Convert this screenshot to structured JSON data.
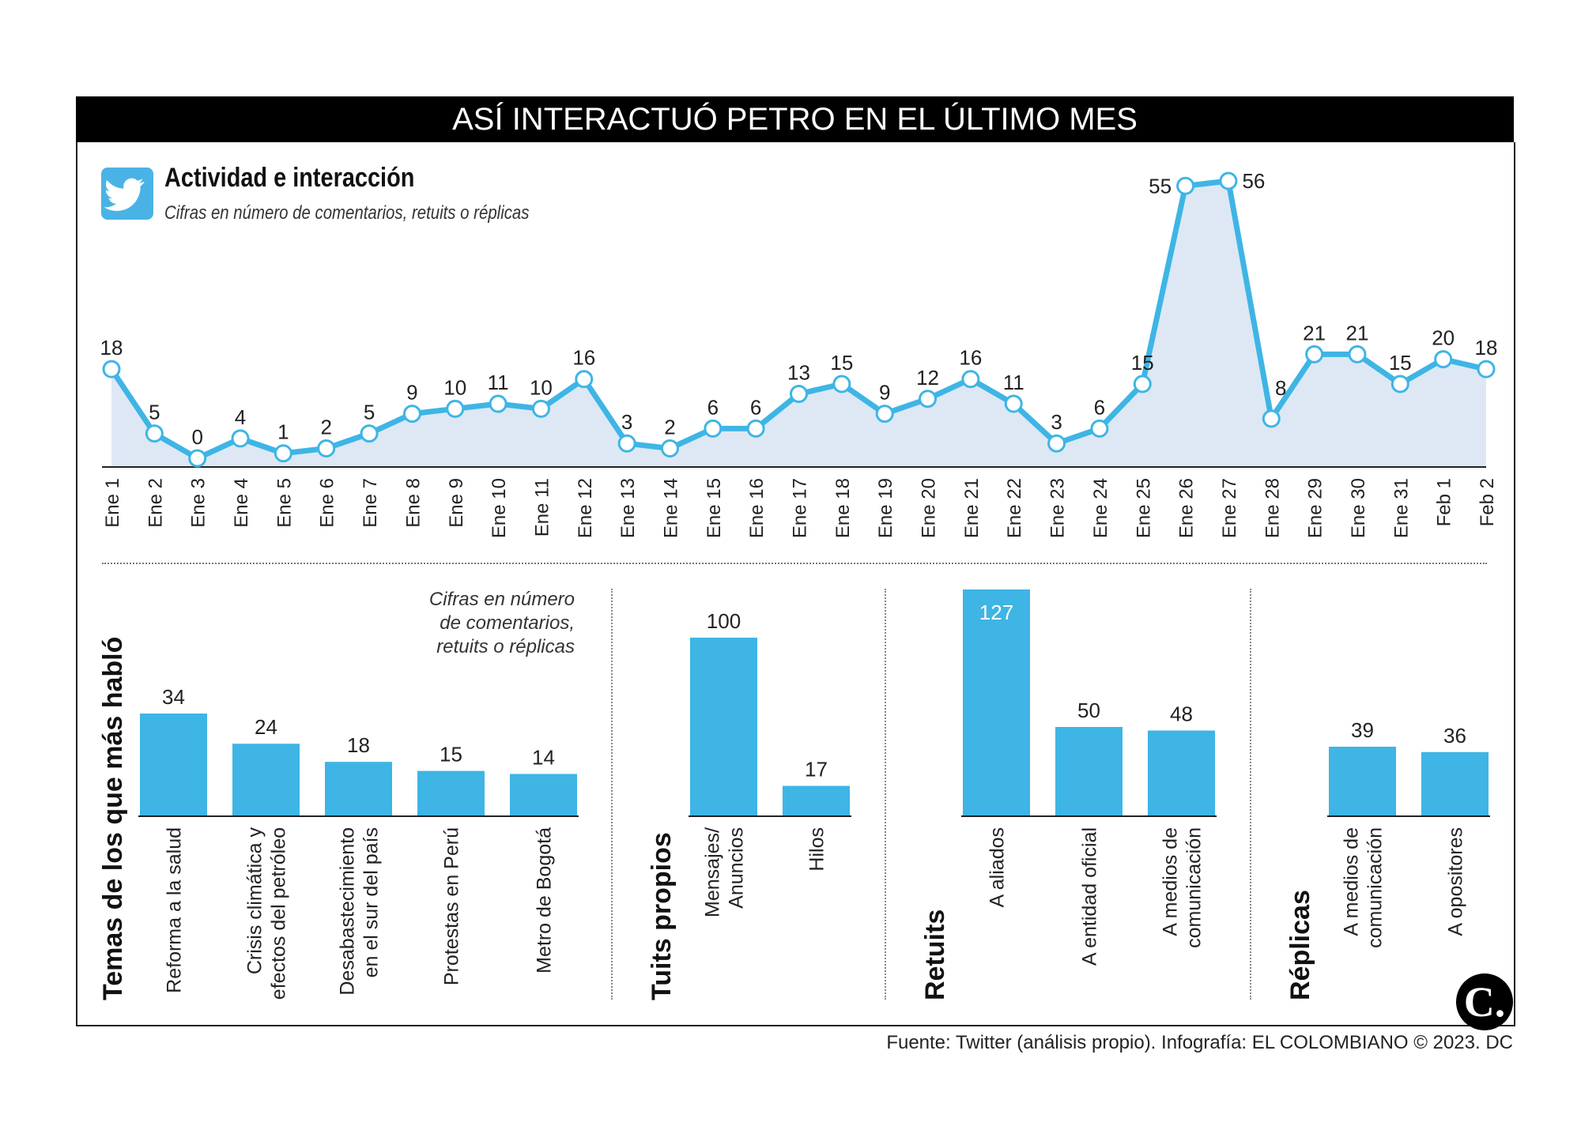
{
  "header": {
    "title": "ASÍ INTERACTUÓ PETRO EN EL ÚLTIMO MES"
  },
  "section1": {
    "icon": "twitter-bird-icon",
    "title": "Actividad e interacción",
    "note": "Cifras en número de comentarios, retuits o réplicas"
  },
  "bars_note": "Cifras en número\nde comentarios,\nretuits o réplicas",
  "footer": "Fuente: Twitter (análisis propio). Infografía: EL COLOMBIANO © 2023. DC",
  "logo": "C.",
  "colors": {
    "accent": "#3eb5e5",
    "area": "#dde8f4",
    "title_bg": "#000000"
  },
  "chart_data": [
    {
      "type": "line",
      "title": "Actividad e interacción",
      "subtitle": "Cifras en número de comentarios, retuits o réplicas",
      "categories": [
        "Ene 1",
        "Ene 2",
        "Ene 3",
        "Ene 4",
        "Ene 5",
        "Ene 6",
        "Ene 7",
        "Ene 8",
        "Ene 9",
        "Ene 10",
        "Ene 11",
        "Ene 12",
        "Ene 13",
        "Ene 14",
        "Ene 15",
        "Ene 16",
        "Ene 17",
        "Ene 18",
        "Ene 19",
        "Ene 20",
        "Ene 21",
        "Ene 22",
        "Ene 23",
        "Ene 24",
        "Ene 25",
        "Ene 26",
        "Ene 27",
        "Ene 28",
        "Ene 29",
        "Ene 30",
        "Ene 31",
        "Feb 1",
        "Feb 2"
      ],
      "values": [
        18,
        5,
        0,
        4,
        1,
        2,
        5,
        9,
        10,
        11,
        10,
        16,
        3,
        2,
        6,
        6,
        13,
        15,
        9,
        12,
        16,
        11,
        3,
        6,
        15,
        55,
        56,
        8,
        21,
        21,
        15,
        20,
        18
      ],
      "ylim": [
        0,
        56
      ],
      "grid": false
    },
    {
      "type": "bar",
      "title": "Temas de los que más habló",
      "categories": [
        "Reforma a la salud",
        "Crisis climática y\nefectos del petróleo",
        "Desabastecimiento\nen el sur del país",
        "Protestas en Perú",
        "Metro de Bogotá"
      ],
      "values": [
        34,
        24,
        18,
        15,
        14
      ]
    },
    {
      "type": "bar",
      "title": "Tuits propios",
      "categories": [
        "Mensajes/\nAnuncios",
        "Hilos"
      ],
      "values": [
        100,
        17
      ]
    },
    {
      "type": "bar",
      "title": "Retuits",
      "categories": [
        "A aliados",
        "A entidad oficial",
        "A medios de\ncomunicación"
      ],
      "values": [
        127,
        50,
        48
      ]
    },
    {
      "type": "bar",
      "title": "Réplicas",
      "categories": [
        "A medios de\ncomunicación",
        "A opositores"
      ],
      "values": [
        39,
        36
      ]
    }
  ]
}
